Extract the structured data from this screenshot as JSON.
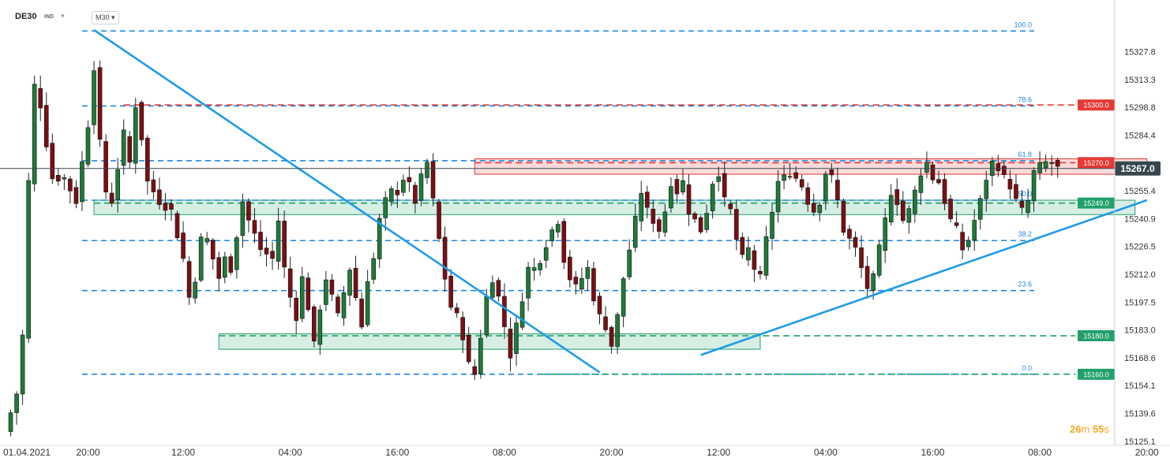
{
  "header": {
    "symbol": "DE30",
    "class_label": "IND",
    "caret": "▾",
    "timeframe": "M30 ▾"
  },
  "timer": {
    "minutes": "26",
    "m_unit": "m",
    "seconds": "55",
    "s_unit": "s"
  },
  "chart_data": {
    "type": "candlestick",
    "instrument": "DE30",
    "timeframe": "M30",
    "title": "",
    "xlabel": "",
    "ylabel": "",
    "ylim": [
      15125.1,
      15342.3
    ],
    "y_ticks": [
      "15327.8",
      "15313.3",
      "15298.8",
      "15284.4",
      "15269.9",
      "15255.4",
      "15240.9",
      "15226.5",
      "15212.0",
      "15197.5",
      "15183.0",
      "15168.6",
      "15154.1",
      "15139.6",
      "15125.1"
    ],
    "x_ticks": [
      {
        "label": "01.04.2021",
        "bar": 0
      },
      {
        "label": "20:00",
        "bar": 14
      },
      {
        "label": "12:00",
        "bar": 30
      },
      {
        "label": "04:00",
        "bar": 48
      },
      {
        "label": "16:00",
        "bar": 66
      },
      {
        "label": "08:00",
        "bar": 84
      },
      {
        "label": "20:00",
        "bar": 102
      },
      {
        "label": "12:00",
        "bar": 120
      },
      {
        "label": "04:00",
        "bar": 138
      },
      {
        "label": "16:00",
        "bar": 156
      },
      {
        "label": "08:00",
        "bar": 174
      },
      {
        "label": "20:00",
        "bar": 192
      }
    ],
    "bar_count": 192,
    "candle_colors": {
      "up": "#1f7a3a",
      "down": "#7a0f14"
    },
    "candle_anchors": [
      [
        0,
        15130
      ],
      [
        2,
        15150
      ],
      [
        3,
        15180
      ],
      [
        4,
        15260
      ],
      [
        5,
        15310
      ],
      [
        6,
        15300
      ],
      [
        7,
        15280
      ],
      [
        8,
        15262
      ],
      [
        10,
        15262
      ],
      [
        12,
        15250
      ],
      [
        14,
        15290
      ],
      [
        15,
        15320
      ],
      [
        16,
        15280
      ],
      [
        17,
        15255
      ],
      [
        18,
        15250
      ],
      [
        20,
        15285
      ],
      [
        21,
        15270
      ],
      [
        22,
        15300
      ],
      [
        23,
        15283
      ],
      [
        24,
        15260
      ],
      [
        26,
        15250
      ],
      [
        28,
        15245
      ],
      [
        30,
        15220
      ],
      [
        31,
        15200
      ],
      [
        32,
        15210
      ],
      [
        33,
        15230
      ],
      [
        34,
        15230
      ],
      [
        36,
        15210
      ],
      [
        37,
        15220
      ],
      [
        38,
        15215
      ],
      [
        40,
        15250
      ],
      [
        41,
        15240
      ],
      [
        43,
        15225
      ],
      [
        45,
        15220
      ],
      [
        46,
        15240
      ],
      [
        47,
        15215
      ],
      [
        48,
        15200
      ],
      [
        49,
        15190
      ],
      [
        50,
        15210
      ],
      [
        51,
        15195
      ],
      [
        52,
        15175
      ],
      [
        53,
        15195
      ],
      [
        54,
        15210
      ],
      [
        55,
        15200
      ],
      [
        56,
        15190
      ],
      [
        58,
        15215
      ],
      [
        59,
        15200
      ],
      [
        60,
        15185
      ],
      [
        61,
        15210
      ],
      [
        62,
        15220
      ],
      [
        63,
        15240
      ],
      [
        64,
        15250
      ],
      [
        65,
        15255
      ],
      [
        66,
        15255
      ],
      [
        67,
        15262
      ],
      [
        68,
        15258
      ],
      [
        69,
        15250
      ],
      [
        70,
        15262
      ],
      [
        71,
        15270
      ],
      [
        72,
        15250
      ],
      [
        73,
        15230
      ],
      [
        74,
        15210
      ],
      [
        75,
        15195
      ],
      [
        76,
        15190
      ],
      [
        77,
        15180
      ],
      [
        78,
        15165
      ],
      [
        79,
        15160
      ],
      [
        80,
        15180
      ],
      [
        81,
        15200
      ],
      [
        82,
        15210
      ],
      [
        83,
        15200
      ],
      [
        84,
        15185
      ],
      [
        85,
        15170
      ],
      [
        86,
        15185
      ],
      [
        87,
        15200
      ],
      [
        88,
        15215
      ],
      [
        89,
        15215
      ],
      [
        90,
        15220
      ],
      [
        91,
        15228
      ],
      [
        92,
        15235
      ],
      [
        93,
        15240
      ],
      [
        94,
        15220
      ],
      [
        95,
        15210
      ],
      [
        96,
        15205
      ],
      [
        97,
        15210
      ],
      [
        98,
        15215
      ],
      [
        99,
        15200
      ],
      [
        100,
        15190
      ],
      [
        101,
        15185
      ],
      [
        102,
        15175
      ],
      [
        103,
        15190
      ],
      [
        104,
        15210
      ],
      [
        105,
        15225
      ],
      [
        106,
        15240
      ],
      [
        107,
        15255
      ],
      [
        108,
        15245
      ],
      [
        109,
        15240
      ],
      [
        110,
        15235
      ],
      [
        111,
        15245
      ],
      [
        112,
        15260
      ],
      [
        113,
        15255
      ],
      [
        114,
        15260
      ],
      [
        115,
        15245
      ],
      [
        116,
        15240
      ],
      [
        117,
        15235
      ],
      [
        118,
        15245
      ],
      [
        119,
        15260
      ],
      [
        120,
        15265
      ],
      [
        121,
        15250
      ],
      [
        122,
        15245
      ],
      [
        123,
        15230
      ],
      [
        124,
        15220
      ],
      [
        125,
        15225
      ],
      [
        126,
        15215
      ],
      [
        127,
        15210
      ],
      [
        128,
        15230
      ],
      [
        129,
        15245
      ],
      [
        130,
        15260
      ],
      [
        131,
        15262
      ],
      [
        132,
        15265
      ],
      [
        133,
        15262
      ],
      [
        134,
        15258
      ],
      [
        135,
        15250
      ],
      [
        136,
        15245
      ],
      [
        137,
        15250
      ],
      [
        138,
        15265
      ],
      [
        139,
        15262
      ],
      [
        140,
        15250
      ],
      [
        141,
        15235
      ],
      [
        142,
        15230
      ],
      [
        143,
        15225
      ],
      [
        144,
        15215
      ],
      [
        145,
        15205
      ],
      [
        146,
        15210
      ],
      [
        147,
        15225
      ],
      [
        148,
        15240
      ],
      [
        149,
        15255
      ],
      [
        150,
        15250
      ],
      [
        151,
        15240
      ],
      [
        152,
        15245
      ],
      [
        153,
        15255
      ],
      [
        154,
        15265
      ],
      [
        155,
        15270
      ],
      [
        156,
        15262
      ],
      [
        157,
        15260
      ],
      [
        158,
        15250
      ],
      [
        159,
        15240
      ],
      [
        160,
        15235
      ],
      [
        161,
        15225
      ],
      [
        162,
        15230
      ],
      [
        163,
        15240
      ],
      [
        164,
        15250
      ],
      [
        165,
        15262
      ],
      [
        166,
        15270
      ],
      [
        167,
        15268
      ],
      [
        168,
        15262
      ],
      [
        169,
        15258
      ],
      [
        170,
        15250
      ],
      [
        171,
        15245
      ],
      [
        172,
        15250
      ],
      [
        173,
        15265
      ],
      [
        174,
        15268
      ],
      [
        175,
        15270
      ],
      [
        176,
        15270
      ],
      [
        177,
        15267
      ]
    ],
    "current_price": "15267.0",
    "fibonacci": [
      {
        "level": "100.0",
        "price": 15338.5
      },
      {
        "level": "78.6",
        "price": 15299.5
      },
      {
        "level": "61.8",
        "price": 15271.0
      },
      {
        "level": "50.0",
        "price": 15250.5
      },
      {
        "level": "38.2",
        "price": 15229.5
      },
      {
        "level": "23.6",
        "price": 15203.5
      },
      {
        "level": "0.0",
        "price": 15160.0
      }
    ],
    "key_levels": [
      {
        "label": "15300.0",
        "price": 15300.0,
        "color": "#e53935"
      },
      {
        "label": "15270.0",
        "price": 15270.0,
        "color": "#e53935"
      },
      {
        "label": "15249.0",
        "price": 15249.0,
        "color": "#22a06b"
      },
      {
        "label": "15180.0",
        "price": 15180.0,
        "color": "#22a06b"
      },
      {
        "label": "15160.0",
        "price": 15160.0,
        "color": "#22a06b"
      }
    ],
    "zones": [
      {
        "type": "resistance",
        "from_bar": 79,
        "to_bar": 192,
        "price_high": 15272.0,
        "price_low": 15264.0,
        "color": "#e53935"
      },
      {
        "type": "support",
        "from_bar": 15,
        "to_bar": 190,
        "price_high": 15250.5,
        "price_low": 15243.0,
        "color": "#22a06b"
      },
      {
        "type": "support",
        "from_bar": 36,
        "to_bar": 127,
        "price_high": 15181.0,
        "price_low": 15173.0,
        "color": "#22a06b"
      }
    ],
    "trendlines": [
      {
        "from": {
          "bar": 15,
          "price": 15339.0
        },
        "to": {
          "bar": 100,
          "price": 15161.0
        }
      },
      {
        "from": {
          "bar": 117,
          "price": 15170.0
        },
        "to": {
          "bar": 192,
          "price": 15250.5
        }
      }
    ],
    "colors": {
      "fib": "#1e88e5",
      "trend": "#1e9be8",
      "current": "#37474f"
    }
  }
}
